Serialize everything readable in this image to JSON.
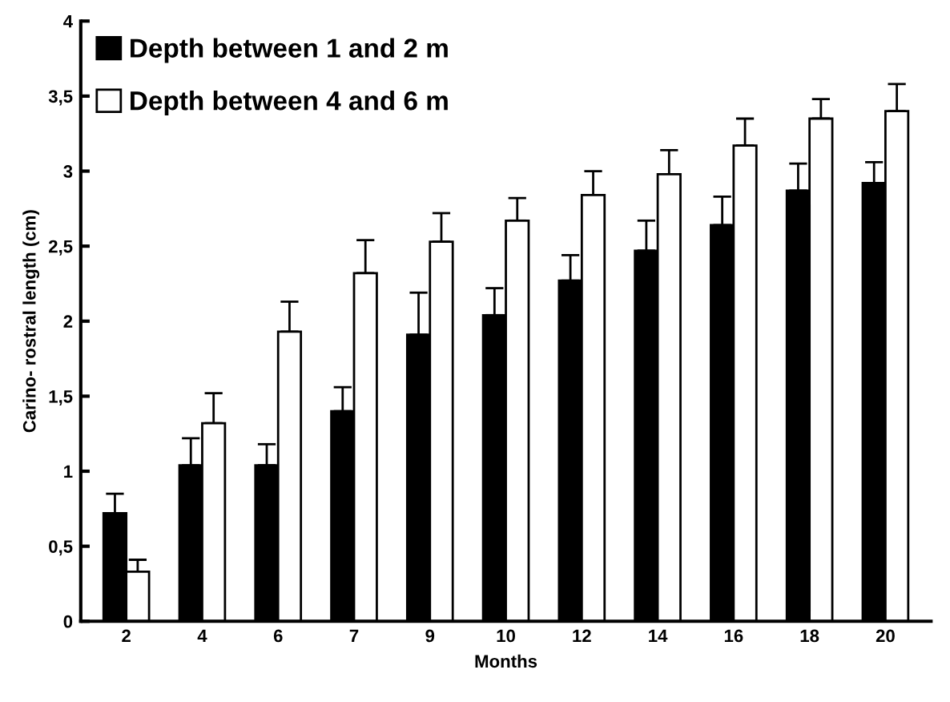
{
  "chart_data": {
    "type": "bar",
    "xlabel": "Months",
    "ylabel": "Carino- rostral length (cm)",
    "categories": [
      "2",
      "4",
      "6",
      "7",
      "9",
      "10",
      "12",
      "14",
      "16",
      "18",
      "20"
    ],
    "series": [
      {
        "name": "Depth between 1 and 2 m",
        "color": "#000000",
        "values": [
          0.72,
          1.04,
          1.04,
          1.4,
          1.91,
          2.04,
          2.27,
          2.47,
          2.64,
          2.87,
          2.92
        ],
        "errors": [
          [
            0.72,
            0.85
          ],
          [
            1.04,
            1.22
          ],
          [
            1.04,
            1.18
          ],
          [
            1.4,
            1.56
          ],
          [
            1.91,
            2.19
          ],
          [
            2.04,
            2.22
          ],
          [
            2.27,
            2.44
          ],
          [
            2.47,
            2.67
          ],
          [
            2.64,
            2.83
          ],
          [
            2.87,
            3.05
          ],
          [
            2.92,
            3.06
          ]
        ]
      },
      {
        "name": "Depth between 4 and 6 m",
        "color": "#ffffff",
        "values": [
          0.33,
          1.32,
          1.93,
          2.32,
          2.53,
          2.67,
          2.84,
          2.98,
          3.17,
          3.35,
          3.4
        ],
        "errors": [
          [
            0.33,
            0.41
          ],
          [
            1.32,
            1.52
          ],
          [
            1.93,
            2.13
          ],
          [
            2.32,
            2.54
          ],
          [
            2.53,
            2.72
          ],
          [
            2.67,
            2.82
          ],
          [
            2.84,
            3.0
          ],
          [
            2.98,
            3.14
          ],
          [
            3.17,
            3.35
          ],
          [
            3.35,
            3.48
          ],
          [
            3.4,
            3.58
          ]
        ]
      }
    ],
    "ylim": [
      0,
      4
    ],
    "yticks": [
      0,
      {
        "value": 0.5,
        "label": "0,5"
      },
      1,
      {
        "value": 1.5,
        "label": "1,5"
      },
      2,
      {
        "value": 2.5,
        "label": "2,5"
      },
      3,
      {
        "value": 3.5,
        "label": "3,5"
      },
      4
    ],
    "grid": false,
    "legend": "top left"
  }
}
